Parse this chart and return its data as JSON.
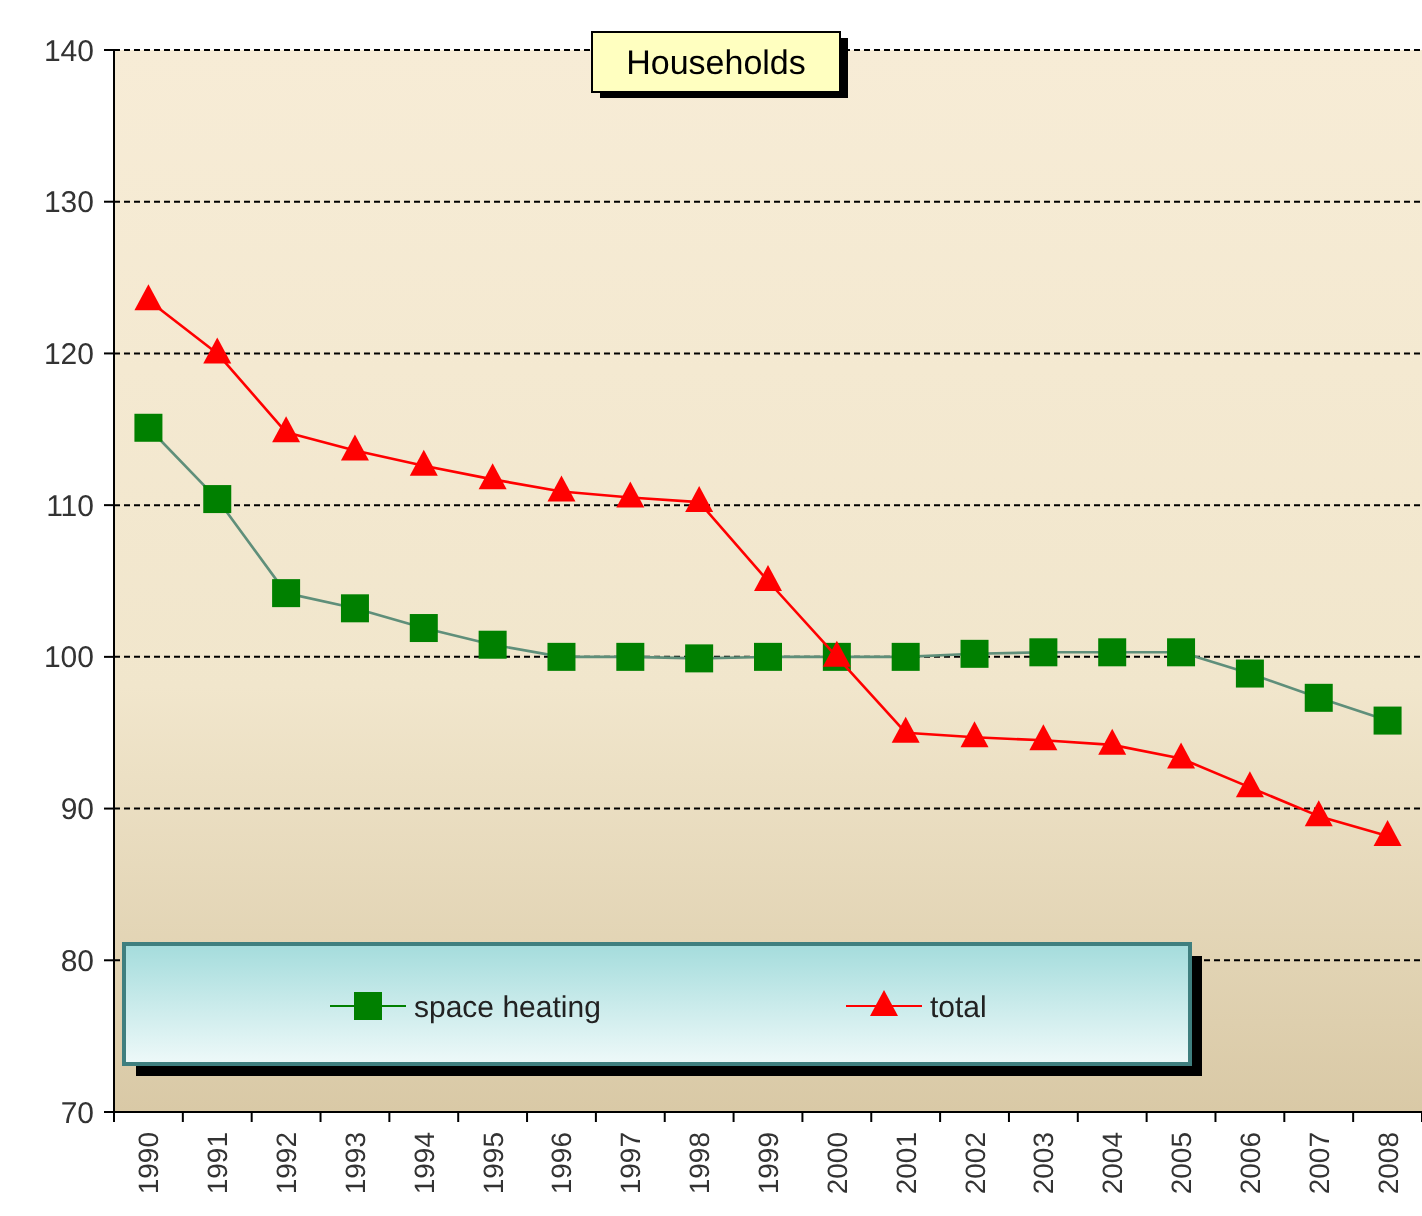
{
  "chart_data": {
    "type": "line",
    "title": "Households",
    "categories": [
      "1990",
      "1991",
      "1992",
      "1993",
      "1994",
      "1995",
      "1996",
      "1997",
      "1998",
      "1999",
      "2000",
      "2001",
      "2002",
      "2003",
      "2004",
      "2005",
      "2006",
      "2007",
      "2008"
    ],
    "series": [
      {
        "name": "space heating",
        "color": "#008000",
        "marker": "square",
        "values": [
          115.1,
          110.4,
          104.2,
          103.2,
          101.9,
          100.8,
          100,
          100,
          99.9,
          100,
          100,
          100,
          100.2,
          100.3,
          100.3,
          100.3,
          98.9,
          97.3,
          95.8
        ]
      },
      {
        "name": "total",
        "color": "#ff0000",
        "marker": "triangle",
        "values": [
          123.5,
          120,
          114.8,
          113.6,
          112.6,
          111.7,
          110.9,
          110.5,
          110.2,
          105,
          100,
          95,
          94.7,
          94.5,
          94.2,
          93.3,
          91.4,
          89.5,
          88.2
        ]
      }
    ],
    "ylim": [
      70,
      140
    ],
    "yticks": [
      70,
      80,
      90,
      100,
      110,
      120,
      130,
      140
    ],
    "grid": "y",
    "legend": "bottom left"
  }
}
